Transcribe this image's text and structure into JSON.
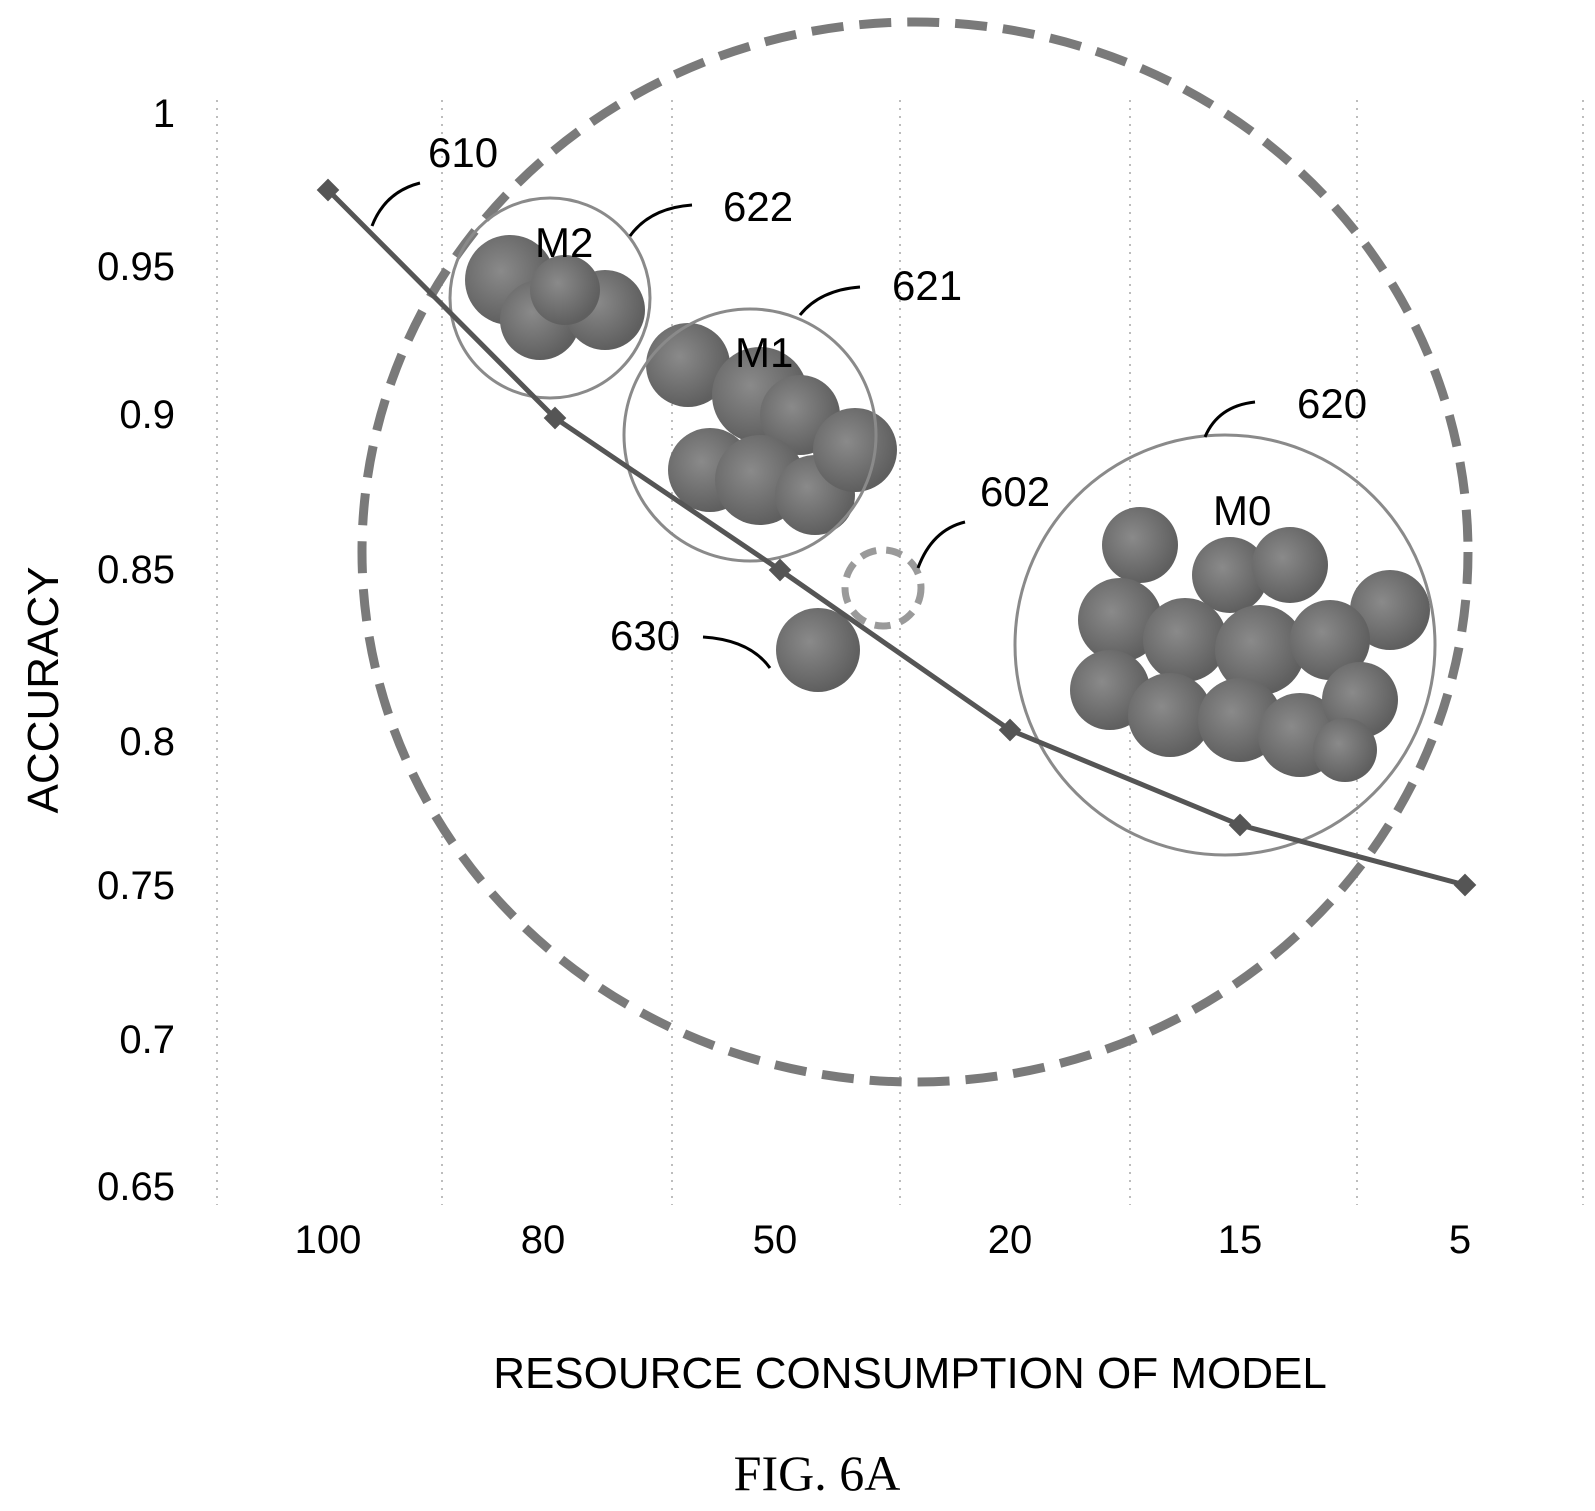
{
  "chart_data": {
    "type": "scatter",
    "title": "",
    "xlabel": "RESOURCE CONSUMPTION OF MODEL",
    "ylabel": "ACCURACY",
    "x_tick_labels": [
      "100",
      "80",
      "50",
      "20",
      "15",
      "5"
    ],
    "y_ticks": [
      "0.65",
      "0.7",
      "0.75",
      "0.8",
      "0.85",
      "0.9",
      "0.95",
      "1"
    ],
    "ylim": [
      0.65,
      1.0
    ],
    "grid": "vertical-dotted",
    "line_series": {
      "label": "610",
      "points": [
        {
          "x": "100",
          "y": 0.975
        },
        {
          "x": "80",
          "y": 0.9
        },
        {
          "x": "50",
          "y": 0.85
        },
        {
          "x": "20",
          "y": 0.8
        },
        {
          "x": "15",
          "y": 0.77
        },
        {
          "x": "5",
          "y": 0.75
        }
      ]
    },
    "clusters": [
      {
        "name": "M2",
        "label": "622"
      },
      {
        "name": "M1",
        "label": "621"
      },
      {
        "name": "M0",
        "label": "620"
      }
    ],
    "annotations": {
      "outer_region": "",
      "candidate": "602",
      "new_point": "630"
    },
    "caption": "FIG. 6A"
  },
  "colors": {
    "marker": "#6e6e6e",
    "line": "#555555",
    "dashed": "#7a7a7a",
    "circle": "#8a8a8a"
  }
}
